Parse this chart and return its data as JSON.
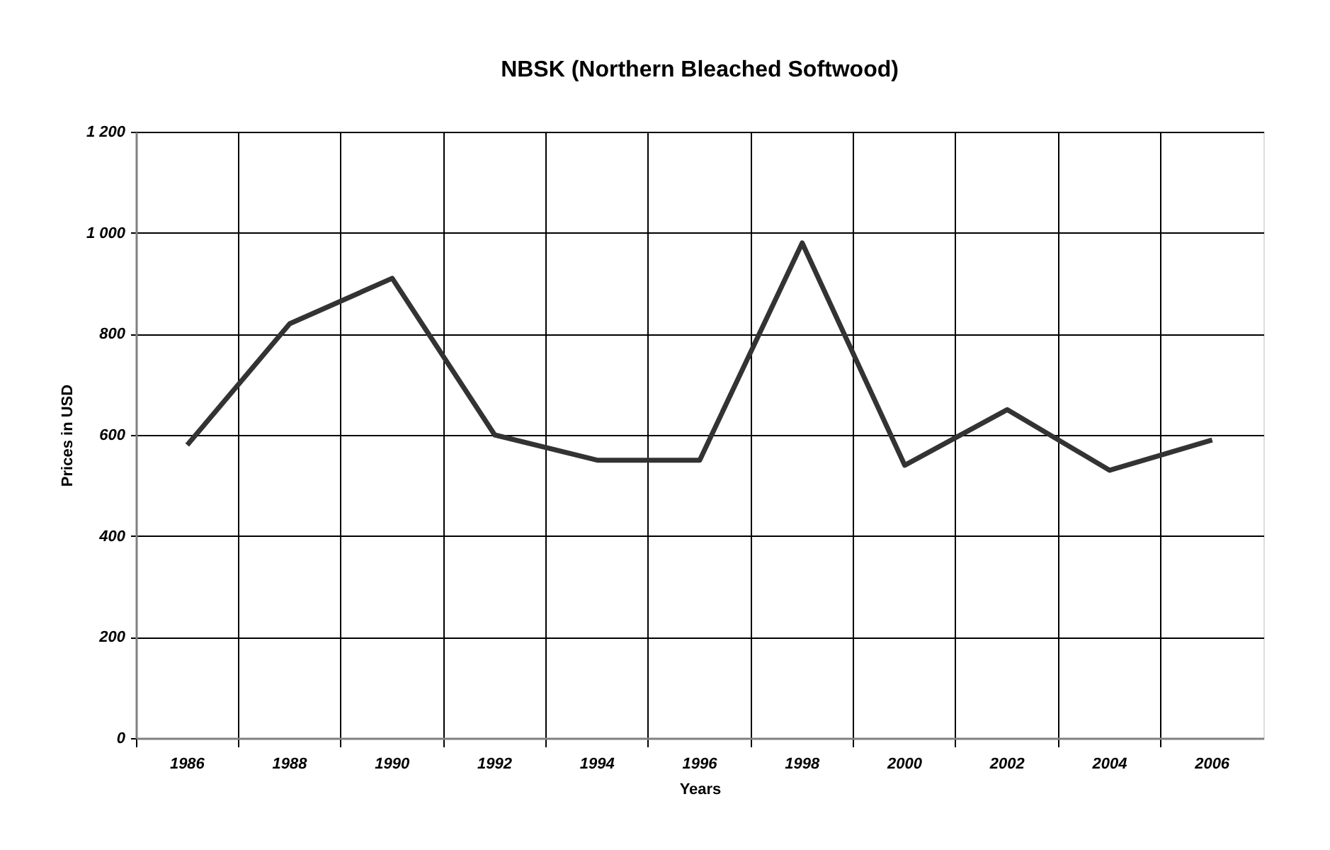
{
  "chart_data": {
    "type": "line",
    "title": "NBSK (Northern Bleached Softwood)",
    "xlabel": "Years",
    "ylabel": "Prices in USD",
    "categories": [
      "1986",
      "1988",
      "1990",
      "1992",
      "1994",
      "1996",
      "1998",
      "2000",
      "2002",
      "2004",
      "2006"
    ],
    "series": [
      {
        "color": "#333333",
        "values": [
          580,
          820,
          910,
          600,
          550,
          550,
          980,
          540,
          650,
          530,
          590
        ]
      }
    ],
    "ylim": [
      0,
      1200
    ],
    "yticks": [
      0,
      200,
      400,
      600,
      800,
      {
        "value": 1000,
        "label": "1 000"
      },
      {
        "value": 1200,
        "label": "1 200"
      }
    ],
    "grid": true,
    "marker": "none",
    "line_style": "solid"
  }
}
